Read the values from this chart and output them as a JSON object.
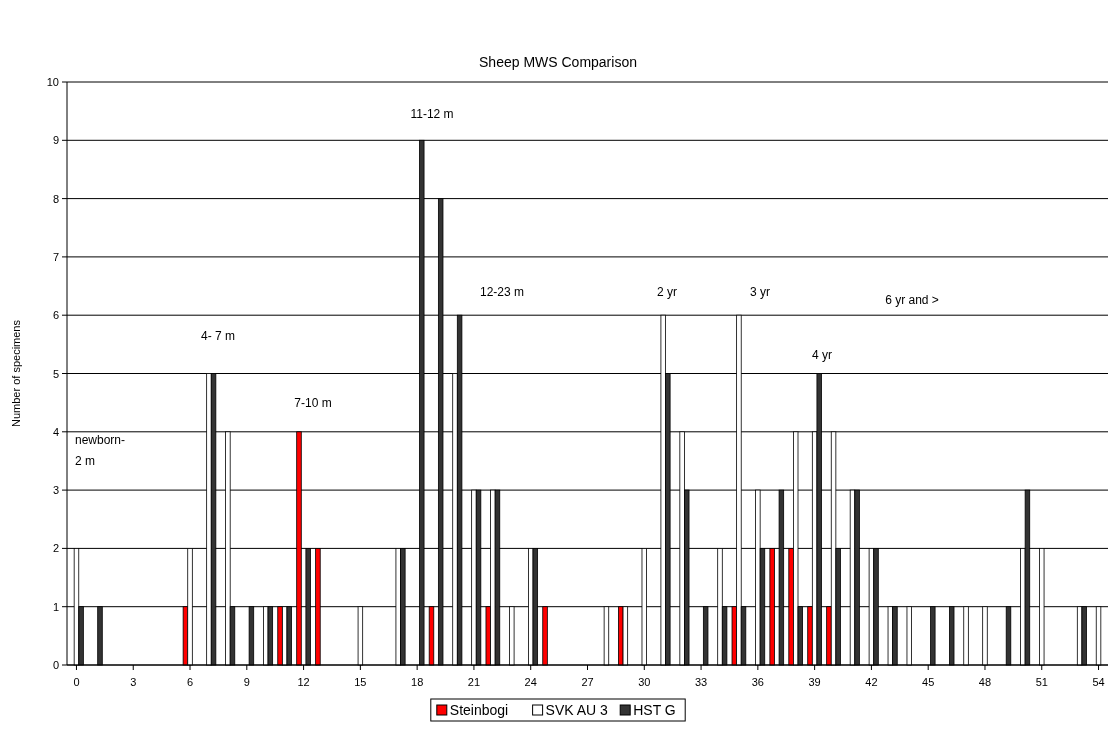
{
  "chart_data": {
    "type": "bar",
    "title": "Sheep MWS Comparison",
    "ylabel": "Number of specimens",
    "x": [
      0,
      1,
      2,
      3,
      4,
      5,
      6,
      7,
      8,
      9,
      10,
      11,
      12,
      13,
      14,
      15,
      16,
      17,
      18,
      19,
      20,
      21,
      22,
      23,
      24,
      25,
      26,
      27,
      28,
      29,
      30,
      31,
      32,
      33,
      34,
      35,
      36,
      37,
      38,
      39,
      40,
      41,
      42,
      43,
      44,
      45,
      46,
      47,
      48,
      49,
      50,
      51,
      52,
      53,
      54
    ],
    "xlim": [
      -0.5,
      54.5
    ],
    "xticks": [
      0,
      3,
      6,
      9,
      12,
      15,
      18,
      21,
      24,
      27,
      30,
      33,
      36,
      39,
      42,
      45,
      48,
      51,
      54
    ],
    "ylim": [
      0,
      10
    ],
    "yticks": [
      0,
      1,
      2,
      3,
      4,
      5,
      6,
      7,
      8,
      9,
      10
    ],
    "grid": "y",
    "legend": "bottom",
    "series": [
      {
        "name": "Steinbogi",
        "color": "#ff0000",
        "values": [
          0,
          0,
          0,
          0,
          0,
          0,
          1,
          0,
          0,
          0,
          0,
          1,
          4,
          2,
          0,
          0,
          0,
          0,
          0,
          1,
          0,
          0,
          1,
          0,
          0,
          1,
          0,
          0,
          0,
          1,
          0,
          0,
          0,
          0,
          0,
          1,
          0,
          2,
          2,
          1,
          1,
          0,
          0,
          0,
          0,
          0,
          0,
          0,
          0,
          0,
          0,
          0,
          0,
          0,
          0
        ]
      },
      {
        "name": "SVK AU 3",
        "color": "#ffffff",
        "values": [
          2,
          0,
          0,
          0,
          0,
          0,
          2,
          5,
          4,
          0,
          1,
          1,
          0,
          0,
          0,
          1,
          0,
          2,
          0,
          0,
          5,
          3,
          3,
          1,
          2,
          0,
          0,
          0,
          1,
          1,
          2,
          6,
          4,
          0,
          2,
          6,
          3,
          0,
          4,
          4,
          4,
          3,
          2,
          1,
          1,
          0,
          0,
          1,
          1,
          0,
          2,
          2,
          0,
          1,
          1
        ]
      },
      {
        "name": "HST G",
        "color": "#333333",
        "values": [
          1,
          1,
          0,
          0,
          0,
          0,
          0,
          5,
          1,
          1,
          1,
          1,
          2,
          0,
          0,
          0,
          0,
          2,
          9,
          8,
          6,
          3,
          3,
          0,
          2,
          0,
          0,
          0,
          0,
          0,
          0,
          5,
          3,
          1,
          1,
          1,
          2,
          3,
          1,
          5,
          2,
          3,
          2,
          1,
          0,
          1,
          1,
          0,
          0,
          1,
          3,
          0,
          0,
          1,
          0
        ]
      }
    ],
    "annotations": [
      "newborn-\n2 m",
      "4- 7 m",
      "7-10 m",
      "11-12 m",
      "12-23 m",
      "2 yr",
      "3 yr",
      "4 yr",
      "6 yr and >"
    ]
  }
}
